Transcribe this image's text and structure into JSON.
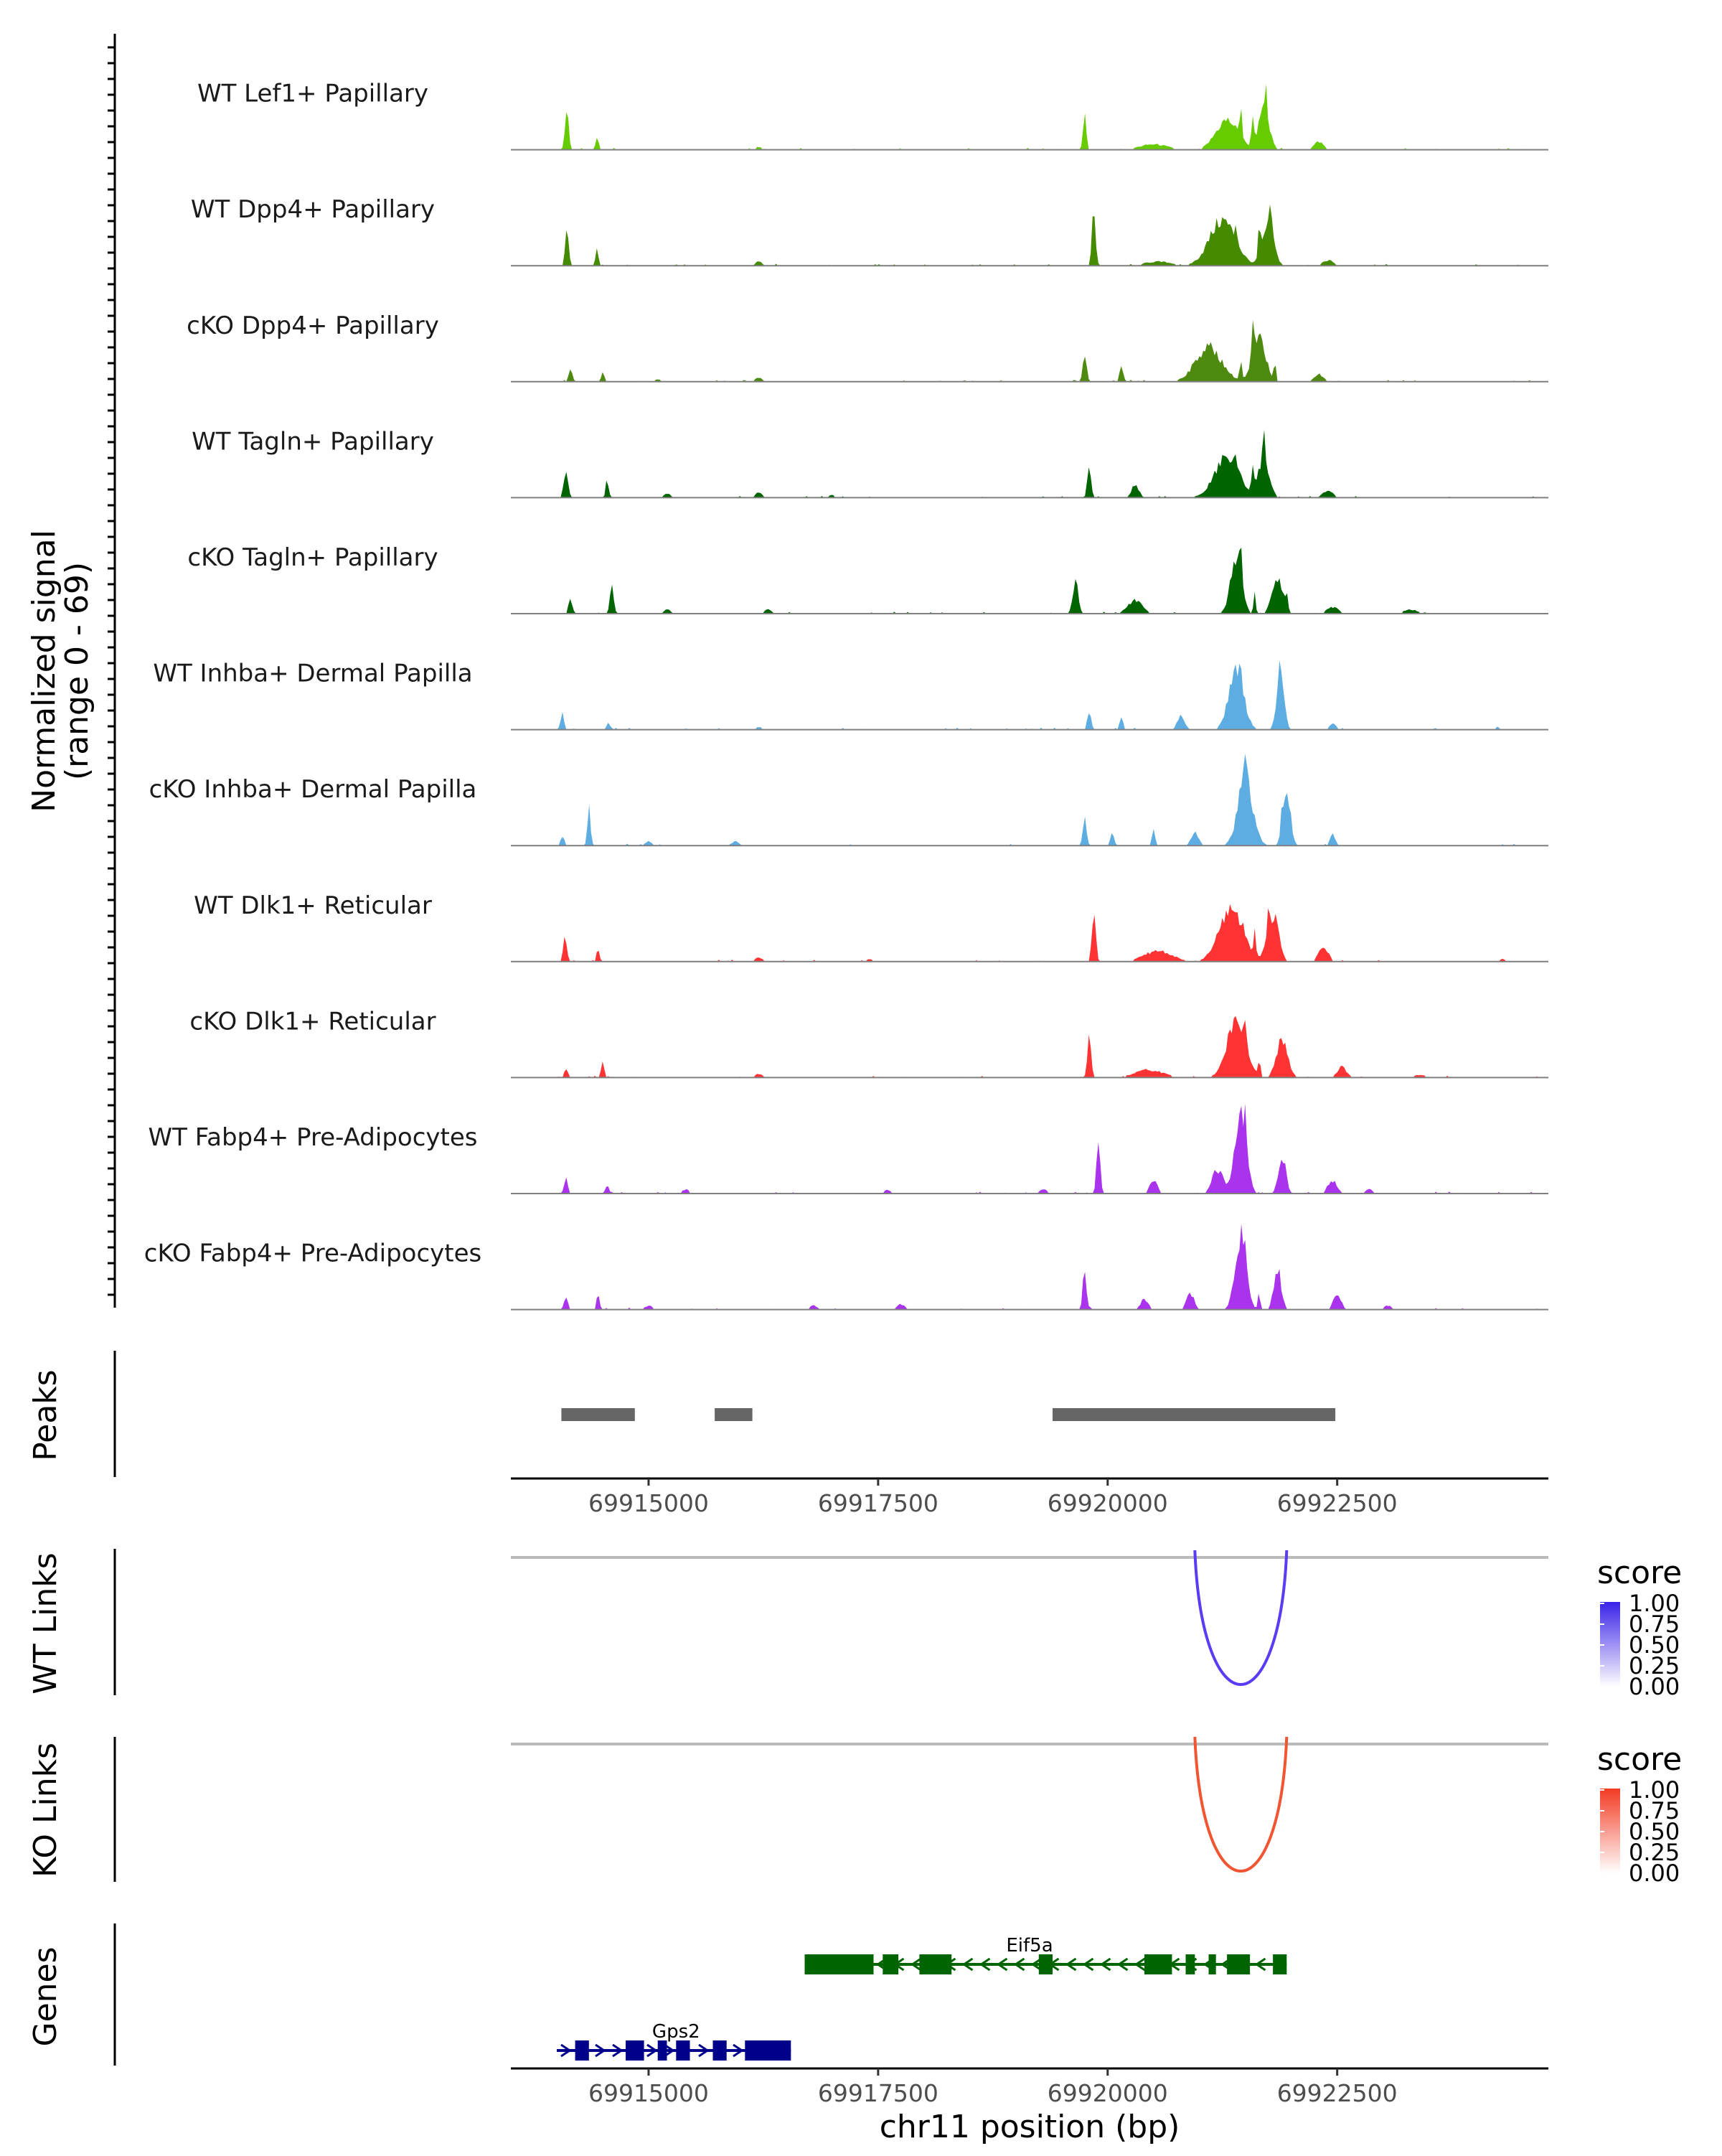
{
  "chart_data": {
    "type": "area",
    "title": "",
    "signal_ylabel": "Normalized signal",
    "signal_range_label": "(range 0 - 69)",
    "ylim": [
      0,
      69
    ],
    "xlabel": "chr11 position (bp)",
    "xlim": [
      69913500,
      69924800
    ],
    "x_ticks": [
      69915000,
      69917500,
      69920000,
      69922500
    ],
    "x_tick_labels": [
      "69915000",
      "69917500",
      "69920000",
      "69922500"
    ],
    "tracks": [
      {
        "name": "WT Lef1+ Papillary",
        "color": "#66CC00",
        "scale": 1.0,
        "peaks": [
          [
            69914110,
            30,
            20
          ],
          [
            69914440,
            9,
            16
          ],
          [
            69916200,
            2,
            40
          ],
          [
            69919750,
            25,
            18
          ],
          [
            69920500,
            4,
            150
          ],
          [
            69921300,
            22,
            120
          ],
          [
            69921700,
            28,
            60
          ],
          [
            69922300,
            6,
            50
          ]
        ],
        "spikes": [
          [
            69921450,
            26
          ],
          [
            69921580,
            24
          ],
          [
            69921720,
            20
          ]
        ]
      },
      {
        "name": "WT Dpp4+ Papillary",
        "color": "#458B00",
        "scale": 1.0,
        "peaks": [
          [
            69914110,
            25,
            20
          ],
          [
            69914440,
            12,
            16
          ],
          [
            69916200,
            3,
            40
          ],
          [
            69919850,
            40,
            20
          ],
          [
            69920550,
            3,
            150
          ],
          [
            69921250,
            34,
            140
          ],
          [
            69921750,
            30,
            60
          ],
          [
            69922400,
            4,
            60
          ]
        ],
        "spikes": [
          [
            69921650,
            22
          ],
          [
            69921780,
            18
          ],
          [
            69921400,
            14
          ]
        ]
      },
      {
        "name": "cKO Dpp4+ Papillary",
        "color": "#4F8A10",
        "scale": 0.92,
        "peaks": [
          [
            69914150,
            10,
            20
          ],
          [
            69914500,
            8,
            16
          ],
          [
            69915100,
            2,
            40
          ],
          [
            69916200,
            3,
            40
          ],
          [
            69919750,
            22,
            20
          ],
          [
            69920150,
            12,
            20
          ],
          [
            69921100,
            28,
            140
          ],
          [
            69921650,
            35,
            70
          ],
          [
            69922300,
            6,
            50
          ]
        ],
        "spikes": [
          [
            69921580,
            26
          ],
          [
            69921450,
            16
          ],
          [
            69921820,
            14
          ]
        ]
      },
      {
        "name": "WT Tagln+ Papillary",
        "color": "#006400",
        "scale": 0.95,
        "peaks": [
          [
            69914100,
            18,
            25
          ],
          [
            69914550,
            14,
            16
          ],
          [
            69915200,
            3,
            40
          ],
          [
            69916200,
            4,
            40
          ],
          [
            69917000,
            2,
            40
          ],
          [
            69919800,
            26,
            20
          ],
          [
            69920300,
            10,
            40
          ],
          [
            69921300,
            32,
            130
          ],
          [
            69921700,
            30,
            60
          ],
          [
            69922400,
            5,
            60
          ]
        ],
        "spikes": [
          [
            69921580,
            24
          ],
          [
            69921700,
            20
          ],
          [
            69921400,
            12
          ]
        ]
      },
      {
        "name": "cKO Tagln+ Papillary",
        "color": "#006400",
        "scale": 0.98,
        "peaks": [
          [
            69914150,
            12,
            20
          ],
          [
            69914600,
            22,
            20
          ],
          [
            69915200,
            3,
            40
          ],
          [
            69916300,
            3,
            40
          ],
          [
            69919650,
            25,
            30
          ],
          [
            69920300,
            10,
            80
          ],
          [
            69921400,
            45,
            60
          ],
          [
            69921850,
            25,
            60
          ],
          [
            69922450,
            5,
            60
          ],
          [
            69923300,
            3,
            80
          ]
        ],
        "spikes": [
          [
            69921450,
            30
          ],
          [
            69921600,
            16
          ],
          [
            69921950,
            12
          ]
        ]
      },
      {
        "name": "WT Inhba+ Dermal Papilla",
        "color": "#5DADE2",
        "scale": 1.0,
        "peaks": [
          [
            69914060,
            12,
            20
          ],
          [
            69914560,
            6,
            16
          ],
          [
            69916200,
            2,
            40
          ],
          [
            69919800,
            15,
            20
          ],
          [
            69920150,
            9,
            20
          ],
          [
            69920800,
            10,
            40
          ],
          [
            69921400,
            45,
            80
          ],
          [
            69921880,
            40,
            40
          ],
          [
            69922450,
            4,
            40
          ],
          [
            69924250,
            2,
            40
          ]
        ],
        "spikes": [
          [
            69921450,
            18
          ],
          [
            69921880,
            14
          ]
        ]
      },
      {
        "name": "cKO Inhba+ Dermal Papilla",
        "color": "#5DADE2",
        "scale": 1.0,
        "peaks": [
          [
            69914060,
            8,
            20
          ],
          [
            69914350,
            28,
            16
          ],
          [
            69915000,
            3,
            40
          ],
          [
            69915950,
            3,
            40
          ],
          [
            69919750,
            22,
            20
          ],
          [
            69920050,
            10,
            20
          ],
          [
            69920500,
            12,
            16
          ],
          [
            69920950,
            10,
            40
          ],
          [
            69921500,
            50,
            80
          ],
          [
            69921950,
            42,
            40
          ],
          [
            69922450,
            8,
            30
          ]
        ],
        "spikes": [
          [
            69921500,
            16
          ],
          [
            69921900,
            14
          ]
        ]
      },
      {
        "name": "WT Dlk1+ Reticular",
        "color": "#FF3333",
        "scale": 1.0,
        "peaks": [
          [
            69914090,
            18,
            20
          ],
          [
            69914450,
            10,
            16
          ],
          [
            69916200,
            3,
            40
          ],
          [
            69917400,
            2,
            40
          ],
          [
            69919850,
            42,
            20
          ],
          [
            69920550,
            8,
            150
          ],
          [
            69921350,
            40,
            130
          ],
          [
            69921800,
            35,
            60
          ],
          [
            69922350,
            12,
            50
          ],
          [
            69924300,
            2,
            40
          ]
        ],
        "spikes": [
          [
            69921600,
            16
          ],
          [
            69921750,
            14
          ]
        ]
      },
      {
        "name": "cKO Dlk1+ Reticular",
        "color": "#FF3333",
        "scale": 0.95,
        "peaks": [
          [
            69914100,
            8,
            20
          ],
          [
            69914500,
            12,
            16
          ],
          [
            69916200,
            3,
            40
          ],
          [
            69919800,
            30,
            20
          ],
          [
            69920450,
            6,
            150
          ],
          [
            69921400,
            45,
            100
          ],
          [
            69921900,
            30,
            60
          ],
          [
            69922550,
            8,
            50
          ],
          [
            69923400,
            2,
            80
          ]
        ],
        "spikes": [
          [
            69921500,
            20
          ],
          [
            69921650,
            14
          ]
        ]
      },
      {
        "name": "WT Fabp4+ Pre-Adipocytes",
        "color": "#AA33EE",
        "scale": 1.0,
        "peaks": [
          [
            69914100,
            12,
            20
          ],
          [
            69914550,
            6,
            20
          ],
          [
            69915400,
            3,
            40
          ],
          [
            69917600,
            3,
            40
          ],
          [
            69919300,
            3,
            40
          ],
          [
            69919900,
            38,
            20
          ],
          [
            69920500,
            10,
            40
          ],
          [
            69921200,
            18,
            60
          ],
          [
            69921450,
            60,
            60
          ],
          [
            69921900,
            28,
            40
          ],
          [
            69922450,
            10,
            50
          ],
          [
            69922850,
            3,
            40
          ]
        ],
        "spikes": [
          [
            69921500,
            16
          ]
        ]
      },
      {
        "name": "cKO Fabp4+ Pre-Adipocytes",
        "color": "#AA33EE",
        "scale": 1.0,
        "peaks": [
          [
            69914100,
            10,
            20
          ],
          [
            69914450,
            12,
            16
          ],
          [
            69915000,
            3,
            40
          ],
          [
            69916800,
            3,
            40
          ],
          [
            69917750,
            4,
            40
          ],
          [
            69919750,
            30,
            20
          ],
          [
            69920400,
            8,
            40
          ],
          [
            69920900,
            12,
            40
          ],
          [
            69921450,
            55,
            60
          ],
          [
            69921850,
            30,
            40
          ],
          [
            69922500,
            12,
            40
          ],
          [
            69923050,
            3,
            40
          ]
        ],
        "spikes": [
          [
            69921500,
            20
          ],
          [
            69921650,
            12
          ]
        ]
      }
    ],
    "peaks_track": {
      "label": "Peaks",
      "color": "#666666",
      "regions": [
        [
          69914050,
          69914850
        ],
        [
          69915720,
          69916130
        ],
        [
          69919400,
          69922480
        ]
      ]
    },
    "links_tracks": [
      {
        "label": "WT Links",
        "color": "#5B3CF5",
        "links": [
          {
            "start": 69920950,
            "end": 69921950,
            "score": 1.0
          }
        ],
        "legend_title": "score",
        "legend_color": "#3A22E8",
        "legend_values": [
          "1.00",
          "0.75",
          "0.50",
          "0.25",
          "0.00"
        ]
      },
      {
        "label": "KO Links",
        "color": "#F25532",
        "links": [
          {
            "start": 69920950,
            "end": 69921950,
            "score": 1.0
          }
        ],
        "legend_title": "score",
        "legend_color": "#F23A22",
        "legend_values": [
          "1.00",
          "0.75",
          "0.50",
          "0.25",
          "0.00"
        ]
      }
    ],
    "genes_track": {
      "label": "Genes",
      "genes": [
        {
          "name": "Eif5a",
          "color": "#006400",
          "strand": "-",
          "start": 69916700,
          "end": 69921950,
          "exons": [
            [
              69916700,
              69917450
            ],
            [
              69917550,
              69917720
            ],
            [
              69917950,
              69918300
            ],
            [
              69919250,
              69919400
            ],
            [
              69920400,
              69920700
            ],
            [
              69920850,
              69920950
            ],
            [
              69921100,
              69921180
            ],
            [
              69921300,
              69921550
            ],
            [
              69921800,
              69921950
            ]
          ]
        },
        {
          "name": "Gps2",
          "color": "#00008B",
          "strand": "+",
          "start": 69914000,
          "end": 69916550,
          "exons": [
            [
              69914200,
              69914350
            ],
            [
              69914750,
              69914950
            ],
            [
              69915100,
              69915200
            ],
            [
              69915300,
              69915450
            ],
            [
              69915700,
              69915850
            ],
            [
              69916050,
              69916200
            ],
            [
              69916300,
              69916350
            ],
            [
              69916150,
              69916550
            ]
          ]
        }
      ]
    }
  }
}
